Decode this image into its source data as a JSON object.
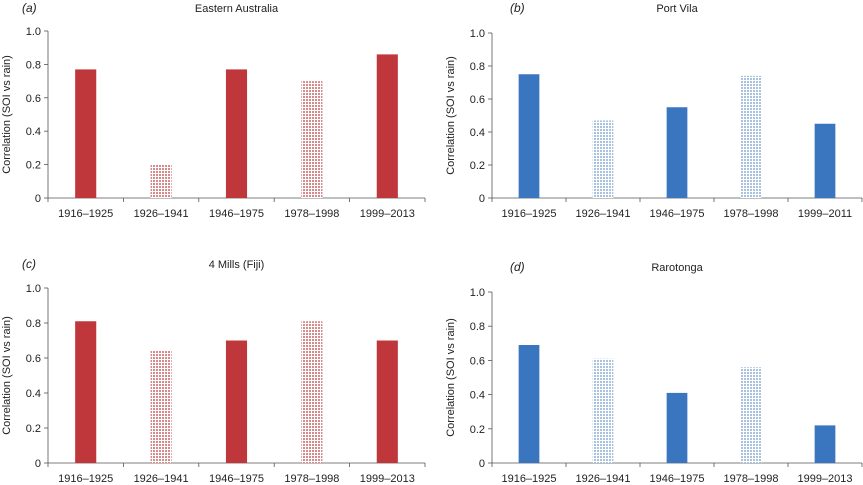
{
  "chart_data": [
    {
      "type": "bar",
      "panel_label": "(a)",
      "title": "Eastern Australia",
      "ylabel": "Correlation (SOI vs rain)",
      "xlabel": "",
      "ylim": [
        0,
        1.0
      ],
      "yticks": [
        "0",
        "0.2",
        "0.4",
        "0.6",
        "0.8",
        "1.0"
      ],
      "categories": [
        "1916–1925",
        "1926–1941",
        "1946–1975",
        "1978–1998",
        "1999–2013"
      ],
      "values": [
        0.77,
        0.2,
        0.77,
        0.7,
        0.86
      ],
      "patterned": [
        false,
        true,
        false,
        true,
        false
      ],
      "color": "#c0373b",
      "pattern_color": "#d68a8c"
    },
    {
      "type": "bar",
      "panel_label": "(b)",
      "title": "Port Vila",
      "ylabel": "Correlation (SOI vs rain)",
      "xlabel": "",
      "ylim": [
        0,
        1.0
      ],
      "yticks": [
        "0",
        "0.2",
        "0.4",
        "0.6",
        "0.8",
        "1.0"
      ],
      "categories": [
        "1916–1925",
        "1926–1941",
        "1946–1975",
        "1978–1998",
        "1999–2011"
      ],
      "values": [
        0.75,
        0.47,
        0.55,
        0.74,
        0.45
      ],
      "patterned": [
        false,
        true,
        false,
        true,
        false
      ],
      "color": "#3a75c0",
      "pattern_color": "#a9c2df"
    },
    {
      "type": "bar",
      "panel_label": "(c)",
      "title": "4 Mills (Fiji)",
      "ylabel": "Correlation (SOI vs rain)",
      "xlabel": "",
      "ylim": [
        0,
        1.0
      ],
      "yticks": [
        "0",
        "0.2",
        "0.4",
        "0.6",
        "0.8",
        "1.0"
      ],
      "categories": [
        "1916–1925",
        "1926–1941",
        "1946–1975",
        "1978–1998",
        "1999–2013"
      ],
      "values": [
        0.81,
        0.64,
        0.7,
        0.81,
        0.7
      ],
      "patterned": [
        false,
        true,
        false,
        true,
        false
      ],
      "color": "#c0373b",
      "pattern_color": "#d68a8c"
    },
    {
      "type": "bar",
      "panel_label": "(d)",
      "title": "Rarotonga",
      "ylabel": "Correlation (SOI vs rain)",
      "xlabel": "",
      "ylim": [
        0,
        1.0
      ],
      "yticks": [
        "0",
        "0.2",
        "0.4",
        "0.6",
        "0.8",
        "1.0"
      ],
      "categories": [
        "1916–1925",
        "1926–1941",
        "1946–1975",
        "1978–1998",
        "1999–2013"
      ],
      "values": [
        0.69,
        0.61,
        0.41,
        0.56,
        0.22
      ],
      "patterned": [
        false,
        true,
        false,
        true,
        false
      ],
      "color": "#3a75c0",
      "pattern_color": "#a9c2df"
    }
  ]
}
